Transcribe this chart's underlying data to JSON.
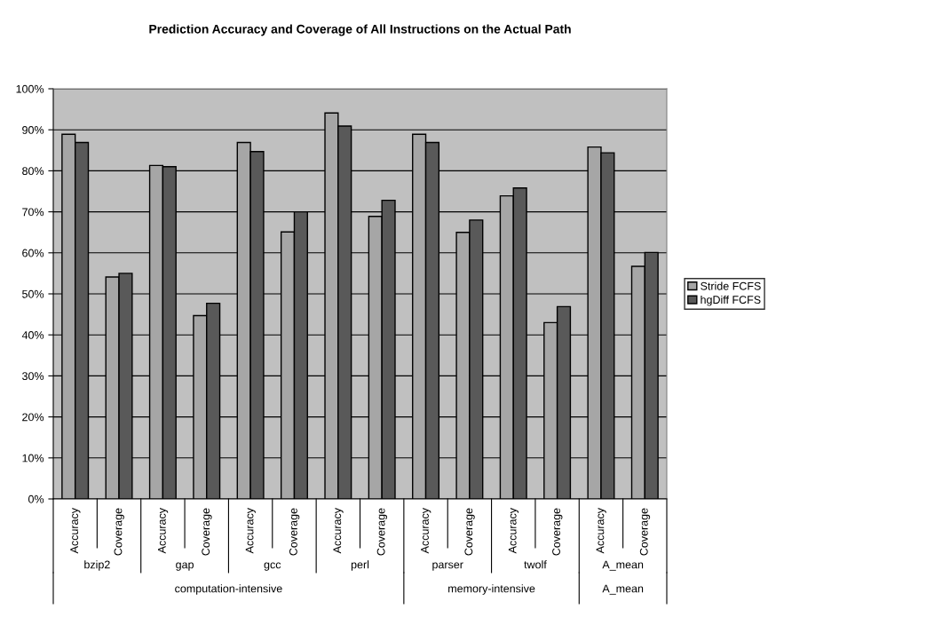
{
  "chart_data": {
    "type": "bar",
    "title": "Prediction Accuracy and Coverage of All Instructions on the Actual Path",
    "categories": [
      "Accuracy",
      "Coverage",
      "Accuracy",
      "Coverage",
      "Accuracy",
      "Coverage",
      "Accuracy",
      "Coverage",
      "Accuracy",
      "Coverage",
      "Accuracy",
      "Coverage",
      "Accuracy",
      "Coverage"
    ],
    "series": [
      {
        "name": "Stride FCFS",
        "color": "#a6a6a6",
        "values": [
          88.9,
          54.1,
          81.3,
          44.7,
          86.9,
          65.1,
          94.1,
          68.9,
          88.9,
          65.0,
          73.9,
          43.0,
          85.8,
          56.7
        ]
      },
      {
        "name": "hgDiff FCFS",
        "color": "#595959",
        "values": [
          86.9,
          55.0,
          81.0,
          47.7,
          84.7,
          70.0,
          90.9,
          72.8,
          86.9,
          68.0,
          75.8,
          46.9,
          84.4,
          60.1
        ]
      }
    ],
    "ylim": [
      0,
      100
    ],
    "yticks": [
      {
        "value": 0,
        "label": "0%"
      },
      {
        "value": 10,
        "label": "10%"
      },
      {
        "value": 20,
        "label": "20%"
      },
      {
        "value": 30,
        "label": "30%"
      },
      {
        "value": 40,
        "label": "40%"
      },
      {
        "value": 50,
        "label": "50%"
      },
      {
        "value": 60,
        "label": "60%"
      },
      {
        "value": 70,
        "label": "70%"
      },
      {
        "value": 80,
        "label": "80%"
      },
      {
        "value": 90,
        "label": "90%"
      },
      {
        "value": 100,
        "label": "100%"
      }
    ],
    "grid": "y",
    "legend": "right",
    "annotations": [
      "bzip2",
      "gap",
      "gcc",
      "perl",
      "parser",
      "twolf",
      "A_mean",
      "computation-intensive",
      "memory-intensive",
      "A_mean"
    ]
  }
}
